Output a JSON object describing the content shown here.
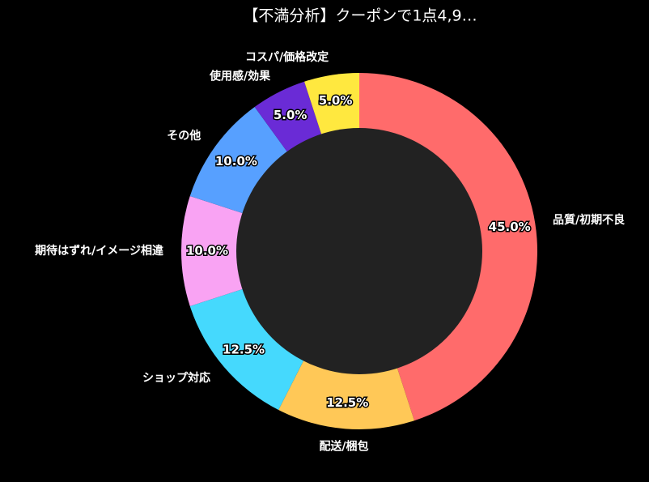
{
  "chart_data": {
    "type": "donut",
    "title": "【不満分析】クーポンで1点4,9…",
    "categories": [
      "品質/初期不良",
      "配送/梱包",
      "ショップ対応",
      "期待はずれ/イメージ相違",
      "その他",
      "使用感/効果",
      "コスパ/価格改定"
    ],
    "values": [
      45.0,
      12.5,
      12.5,
      10.0,
      10.0,
      5.0,
      5.0
    ],
    "value_labels": [
      "45.0%",
      "12.5%",
      "12.5%",
      "10.0%",
      "10.0%",
      "5.0%",
      "5.0%"
    ],
    "colors": [
      "#ff6b6b",
      "#ffc857",
      "#45d9fd",
      "#f9a3f3",
      "#57a0ff",
      "#6a2bd6",
      "#ffe83f"
    ]
  }
}
